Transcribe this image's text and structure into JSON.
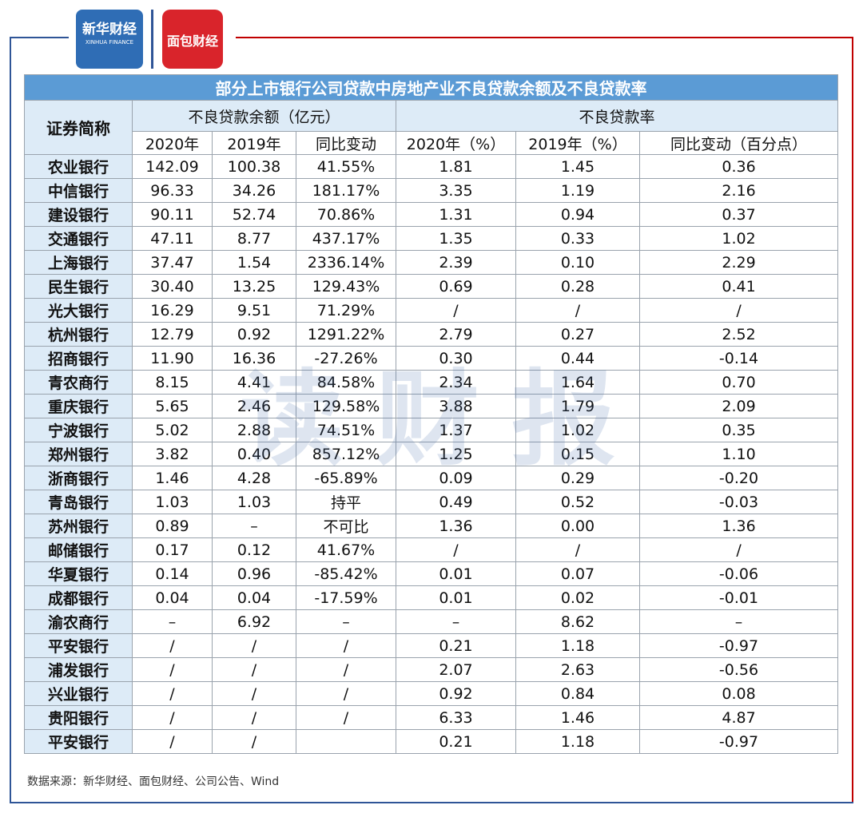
{
  "logos": {
    "xinhua": {
      "name": "新华财经",
      "sub": "XINHUA FINANCE"
    },
    "bread": {
      "name": "面包财经"
    }
  },
  "watermark": "读财报",
  "table": {
    "title": "部分上市银行公司贷款中房地产业不良贷款余额及不良贷款率",
    "group_headers": [
      "证券简称",
      "不良贷款余额（亿元）",
      "不良贷款率"
    ],
    "columns": [
      "2020年",
      "2019年",
      "同比变动",
      "2020年（%）",
      "2019年（%）",
      "同比变动（百分点）"
    ],
    "rows": [
      [
        "农业银行",
        "142.09",
        "100.38",
        "41.55%",
        "1.81",
        "1.45",
        "0.36"
      ],
      [
        "中信银行",
        "96.33",
        "34.26",
        "181.17%",
        "3.35",
        "1.19",
        "2.16"
      ],
      [
        "建设银行",
        "90.11",
        "52.74",
        "70.86%",
        "1.31",
        "0.94",
        "0.37"
      ],
      [
        "交通银行",
        "47.11",
        "8.77",
        "437.17%",
        "1.35",
        "0.33",
        "1.02"
      ],
      [
        "上海银行",
        "37.47",
        "1.54",
        "2336.14%",
        "2.39",
        "0.10",
        "2.29"
      ],
      [
        "民生银行",
        "30.40",
        "13.25",
        "129.43%",
        "0.69",
        "0.28",
        "0.41"
      ],
      [
        "光大银行",
        "16.29",
        "9.51",
        "71.29%",
        "/",
        "/",
        "/"
      ],
      [
        "杭州银行",
        "12.79",
        "0.92",
        "1291.22%",
        "2.79",
        "0.27",
        "2.52"
      ],
      [
        "招商银行",
        "11.90",
        "16.36",
        "-27.26%",
        "0.30",
        "0.44",
        "-0.14"
      ],
      [
        "青农商行",
        "8.15",
        "4.41",
        "84.58%",
        "2.34",
        "1.64",
        "0.70"
      ],
      [
        "重庆银行",
        "5.65",
        "2.46",
        "129.58%",
        "3.88",
        "1.79",
        "2.09"
      ],
      [
        "宁波银行",
        "5.02",
        "2.88",
        "74.51%",
        "1.37",
        "1.02",
        "0.35"
      ],
      [
        "郑州银行",
        "3.82",
        "0.40",
        "857.12%",
        "1.25",
        "0.15",
        "1.10"
      ],
      [
        "浙商银行",
        "1.46",
        "4.28",
        "-65.89%",
        "0.09",
        "0.29",
        "-0.20"
      ],
      [
        "青岛银行",
        "1.03",
        "1.03",
        "持平",
        "0.49",
        "0.52",
        "-0.03"
      ],
      [
        "苏州银行",
        "0.89",
        "–",
        "不可比",
        "1.36",
        "0.00",
        "1.36"
      ],
      [
        "邮储银行",
        "0.17",
        "0.12",
        "41.67%",
        "/",
        "/",
        "/"
      ],
      [
        "华夏银行",
        "0.14",
        "0.96",
        "-85.42%",
        "0.01",
        "0.07",
        "-0.06"
      ],
      [
        "成都银行",
        "0.04",
        "0.04",
        "-17.59%",
        "0.01",
        "0.02",
        "-0.01"
      ],
      [
        "渝农商行",
        "–",
        "6.92",
        "–",
        "–",
        "8.62",
        "–"
      ],
      [
        "平安银行",
        "/",
        "/",
        "/",
        "0.21",
        "1.18",
        "-0.97"
      ],
      [
        "浦发银行",
        "/",
        "/",
        "/",
        "2.07",
        "2.63",
        "-0.56"
      ],
      [
        "兴业银行",
        "/",
        "/",
        "/",
        "0.92",
        "0.84",
        "0.08"
      ],
      [
        "贵阳银行",
        "/",
        "/",
        "/",
        "6.33",
        "1.46",
        "4.87"
      ],
      [
        "平安银行",
        "/",
        "/",
        null,
        "0.21",
        "1.18",
        "-0.97"
      ]
    ]
  },
  "source": "数据来源：新华财经、面包财经、公司公告、Wind"
}
